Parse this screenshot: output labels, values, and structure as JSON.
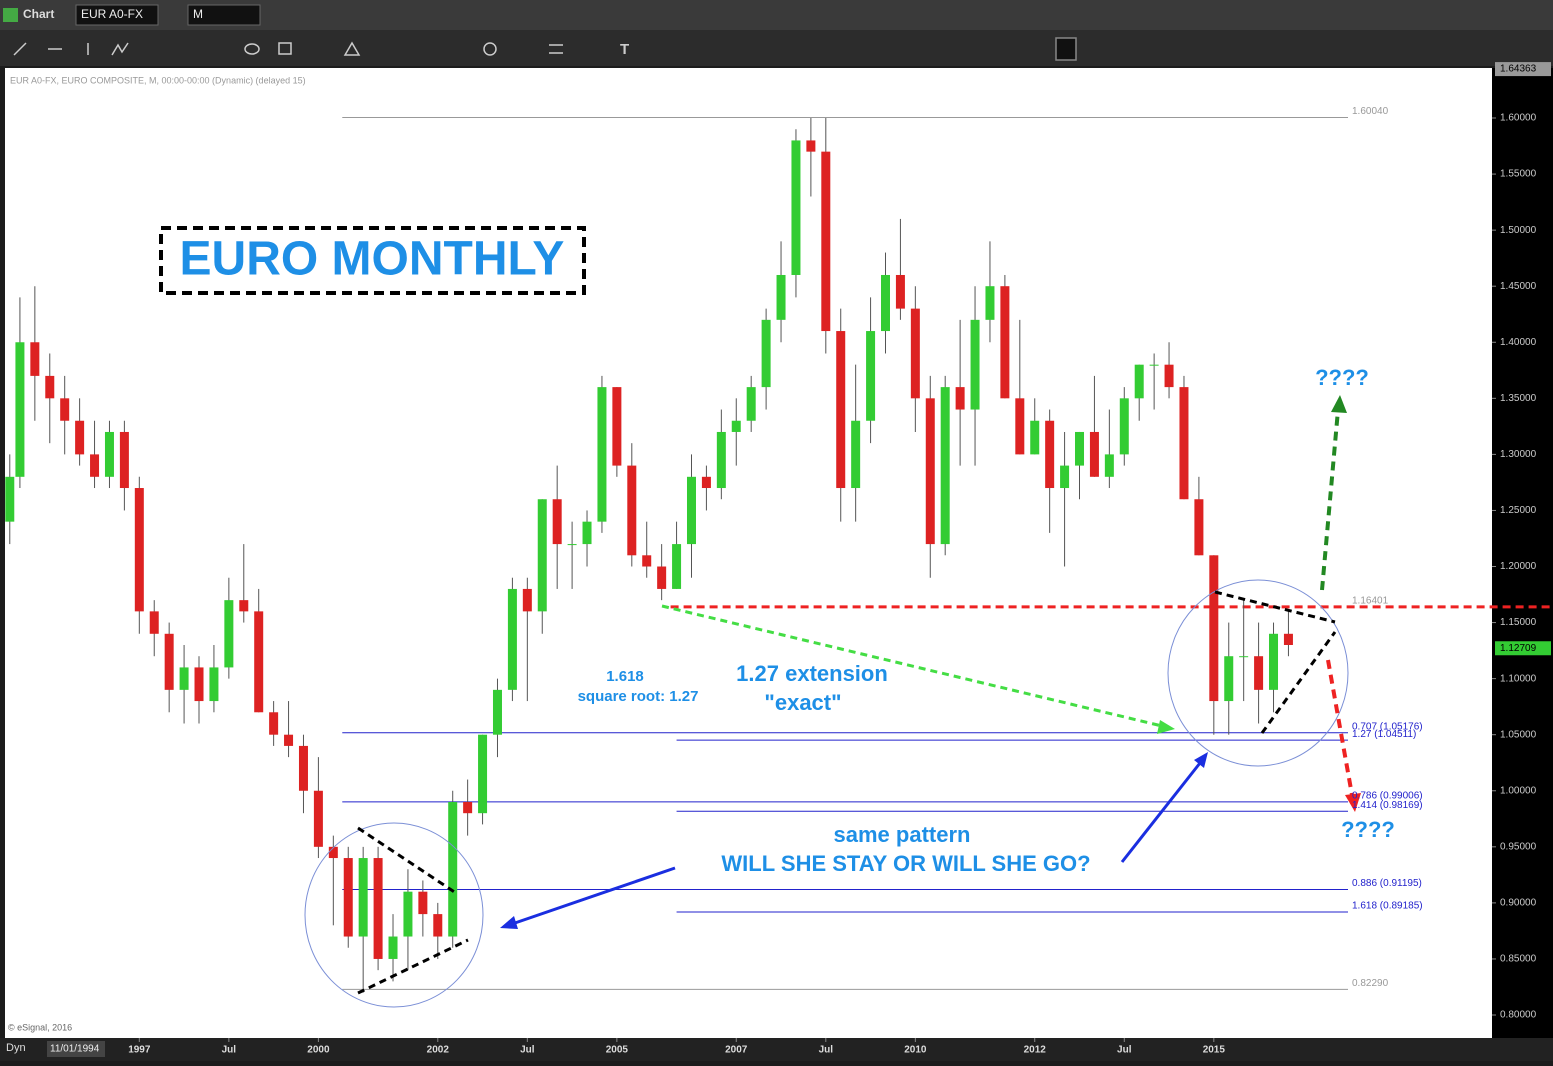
{
  "ui": {
    "window_title": "Chart",
    "symbol": "EUR A0-FX",
    "interval": "M",
    "info": "EUR A0-FX, EURO COMPOSITE, M, 00:00-00:00 (Dynamic) (delayed 15)",
    "copyright": "© eSignal, 2016",
    "mode": "Dyn",
    "start_date": "11/01/1994"
  },
  "chart_data": {
    "type": "candlestick",
    "annotations": {
      "title": "EURO MONTHLY",
      "ratio": "1.618",
      "root": "square root: 1.27",
      "extension": "1.27 extension",
      "exact": "\"exact\"",
      "pattern": "same pattern",
      "question": "WILL SHE STAY OR WILL SHE GO?",
      "up": "????",
      "down": "????"
    },
    "x": [
      1994.83,
      1995.0,
      1995.25,
      1995.5,
      1995.75,
      1996.0,
      1996.25,
      1996.5,
      1996.75,
      1997.0,
      1997.25,
      1997.5,
      1997.75,
      1998.0,
      1998.25,
      1998.5,
      1998.75,
      1999.0,
      1999.25,
      1999.5,
      1999.75,
      2000.0,
      2000.25,
      2000.5,
      2000.75,
      2001.0,
      2001.25,
      2001.5,
      2001.75,
      2002.0,
      2002.25,
      2002.5,
      2002.75,
      2003.0,
      2003.25,
      2003.5,
      2003.75,
      2004.0,
      2004.25,
      2004.5,
      2004.75,
      2005.0,
      2005.25,
      2005.5,
      2005.75,
      2006.0,
      2006.25,
      2006.5,
      2006.75,
      2007.0,
      2007.25,
      2007.5,
      2007.75,
      2008.0,
      2008.25,
      2008.5,
      2008.75,
      2009.0,
      2009.25,
      2009.5,
      2009.75,
      2010.0,
      2010.25,
      2010.5,
      2010.75,
      2011.0,
      2011.25,
      2011.5,
      2011.75,
      2012.0,
      2012.25,
      2012.5,
      2012.75,
      2013.0,
      2013.25,
      2013.5,
      2013.75,
      2014.0,
      2014.25,
      2014.5,
      2014.75,
      2015.0,
      2015.25,
      2015.5,
      2015.75,
      2016.0,
      2016.25
    ],
    "open": [
      1.24,
      1.28,
      1.4,
      1.37,
      1.35,
      1.33,
      1.3,
      1.28,
      1.32,
      1.27,
      1.16,
      1.14,
      1.09,
      1.11,
      1.08,
      1.11,
      1.17,
      1.16,
      1.07,
      1.05,
      1.04,
      1.0,
      0.95,
      0.94,
      0.87,
      0.94,
      0.85,
      0.87,
      0.91,
      0.89,
      0.87,
      0.99,
      0.98,
      1.05,
      1.09,
      1.18,
      1.16,
      1.26,
      1.22,
      1.22,
      1.24,
      1.36,
      1.29,
      1.21,
      1.2,
      1.18,
      1.22,
      1.28,
      1.27,
      1.32,
      1.33,
      1.36,
      1.42,
      1.46,
      1.58,
      1.57,
      1.41,
      1.27,
      1.33,
      1.41,
      1.46,
      1.43,
      1.35,
      1.22,
      1.36,
      1.34,
      1.42,
      1.45,
      1.35,
      1.3,
      1.33,
      1.27,
      1.29,
      1.32,
      1.28,
      1.3,
      1.35,
      1.38,
      1.38,
      1.36,
      1.26,
      1.21,
      1.08,
      1.12,
      1.12,
      1.09,
      1.14
    ],
    "high": [
      1.3,
      1.44,
      1.45,
      1.39,
      1.37,
      1.35,
      1.33,
      1.33,
      1.33,
      1.28,
      1.17,
      1.15,
      1.13,
      1.12,
      1.13,
      1.19,
      1.22,
      1.18,
      1.08,
      1.08,
      1.05,
      1.03,
      0.96,
      0.95,
      0.95,
      0.95,
      0.89,
      0.93,
      0.92,
      0.9,
      1.0,
      1.01,
      1.05,
      1.1,
      1.19,
      1.19,
      1.26,
      1.29,
      1.24,
      1.25,
      1.37,
      1.36,
      1.31,
      1.24,
      1.22,
      1.24,
      1.3,
      1.29,
      1.34,
      1.35,
      1.37,
      1.43,
      1.49,
      1.59,
      1.6,
      1.6,
      1.43,
      1.38,
      1.44,
      1.48,
      1.51,
      1.45,
      1.37,
      1.37,
      1.42,
      1.45,
      1.49,
      1.46,
      1.42,
      1.35,
      1.34,
      1.32,
      1.32,
      1.37,
      1.34,
      1.36,
      1.38,
      1.39,
      1.4,
      1.37,
      1.28,
      1.21,
      1.15,
      1.17,
      1.15,
      1.15,
      1.16
    ],
    "low": [
      1.22,
      1.27,
      1.33,
      1.31,
      1.3,
      1.29,
      1.27,
      1.27,
      1.25,
      1.14,
      1.12,
      1.07,
      1.06,
      1.06,
      1.07,
      1.1,
      1.15,
      1.07,
      1.04,
      1.03,
      0.98,
      0.94,
      0.88,
      0.86,
      0.82,
      0.84,
      0.83,
      0.84,
      0.87,
      0.85,
      0.86,
      0.96,
      0.97,
      1.03,
      1.08,
      1.08,
      1.14,
      1.18,
      1.18,
      1.2,
      1.23,
      1.28,
      1.2,
      1.19,
      1.17,
      1.18,
      1.19,
      1.25,
      1.26,
      1.29,
      1.32,
      1.34,
      1.4,
      1.44,
      1.53,
      1.39,
      1.24,
      1.24,
      1.31,
      1.39,
      1.42,
      1.32,
      1.19,
      1.21,
      1.29,
      1.29,
      1.4,
      1.35,
      1.3,
      1.3,
      1.23,
      1.2,
      1.26,
      1.28,
      1.27,
      1.29,
      1.33,
      1.34,
      1.35,
      1.26,
      1.21,
      1.05,
      1.05,
      1.08,
      1.06,
      1.07,
      1.12
    ],
    "close": [
      1.28,
      1.4,
      1.37,
      1.35,
      1.33,
      1.3,
      1.28,
      1.32,
      1.27,
      1.16,
      1.14,
      1.09,
      1.11,
      1.08,
      1.11,
      1.17,
      1.16,
      1.07,
      1.05,
      1.04,
      1.0,
      0.95,
      0.94,
      0.87,
      0.94,
      0.85,
      0.87,
      0.91,
      0.89,
      0.87,
      0.99,
      0.98,
      1.05,
      1.09,
      1.18,
      1.16,
      1.26,
      1.22,
      1.22,
      1.24,
      1.36,
      1.29,
      1.21,
      1.2,
      1.18,
      1.22,
      1.28,
      1.27,
      1.32,
      1.33,
      1.36,
      1.42,
      1.46,
      1.58,
      1.57,
      1.41,
      1.27,
      1.33,
      1.41,
      1.46,
      1.43,
      1.35,
      1.22,
      1.36,
      1.34,
      1.42,
      1.45,
      1.35,
      1.3,
      1.33,
      1.27,
      1.29,
      1.32,
      1.28,
      1.3,
      1.35,
      1.38,
      1.38,
      1.36,
      1.26,
      1.21,
      1.08,
      1.12,
      1.12,
      1.09,
      1.14,
      1.13
    ],
    "up_color": "#33cc33",
    "down_color": "#dd2222",
    "xlim": [
      1994.75,
      2019.66
    ],
    "xticks": [
      1997,
      {
        "value": 1998.5,
        "label": "Jul"
      },
      2000,
      2002,
      {
        "value": 2003.5,
        "label": "Jul"
      },
      2005,
      2007,
      {
        "value": 2008.5,
        "label": "Jul"
      },
      2010,
      2012,
      {
        "value": 2013.5,
        "label": "Jul"
      },
      2015
    ],
    "ylim": [
      0.7795,
      1.6446
    ],
    "yticks": [
      {
        "value": 0.8,
        "label": "0.80000"
      },
      {
        "value": 0.85,
        "label": "0.85000"
      },
      {
        "value": 0.9,
        "label": "0.90000"
      },
      {
        "value": 0.95,
        "label": "0.95000"
      },
      {
        "value": 1.0,
        "label": "1.00000"
      },
      {
        "value": 1.05,
        "label": "1.05000"
      },
      {
        "value": 1.1,
        "label": "1.10000"
      },
      {
        "value": 1.15,
        "label": "1.15000"
      },
      {
        "value": 1.2,
        "label": "1.20000"
      },
      {
        "value": 1.25,
        "label": "1.25000"
      },
      {
        "value": 1.3,
        "label": "1.30000"
      },
      {
        "value": 1.35,
        "label": "1.35000"
      },
      {
        "value": 1.4,
        "label": "1.40000"
      },
      {
        "value": 1.45,
        "label": "1.45000"
      },
      {
        "value": 1.5,
        "label": "1.50000"
      },
      {
        "value": 1.55,
        "label": "1.55000"
      },
      {
        "value": 1.6,
        "label": "1.60000"
      }
    ],
    "last_price": 1.12709,
    "top_price": 1.64363,
    "levels": [
      {
        "value": 1.6004,
        "label": "1.60040",
        "from": 2000.4,
        "color": "#999999"
      },
      {
        "value": 1.16401,
        "label": "1.16401",
        "from": 2005.9,
        "color": "#ee2222",
        "dashed": true
      },
      {
        "value": 1.05176,
        "label": "0.707 (1.05176)",
        "from": 2000.4,
        "color": "#2222cc"
      },
      {
        "value": 1.04511,
        "label": "1.27 (1.04511)",
        "from": 2006.0,
        "color": "#2222cc"
      },
      {
        "value": 0.99006,
        "label": "0.786 (0.99006)",
        "from": 2000.4,
        "color": "#2222cc"
      },
      {
        "value": 0.98169,
        "label": "1.414 (0.98169)",
        "from": 2006.0,
        "color": "#2222cc"
      },
      {
        "value": 0.91195,
        "label": "0.886 (0.91195)",
        "from": 2000.4,
        "color": "#2222cc"
      },
      {
        "value": 0.89185,
        "label": "1.618 (0.89185)",
        "from": 2006.0,
        "color": "#2222cc"
      },
      {
        "value": 0.8229,
        "label": "0.82290",
        "from": 2000.4,
        "color": "#999999"
      }
    ]
  }
}
